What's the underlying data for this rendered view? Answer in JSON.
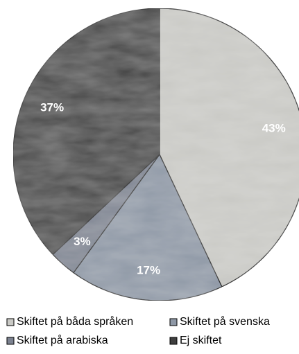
{
  "chart_data": {
    "type": "pie",
    "categories": [
      "Skiftet på båda språken",
      "Skiftet på svenska",
      "Skiftet på arabiska",
      "Ej skiftet"
    ],
    "values": [
      43,
      17,
      3,
      37
    ],
    "value_labels": [
      "43%",
      "17%",
      "3%",
      "37%"
    ],
    "colors": [
      "#c9c9c5",
      "#8e98a6",
      "#7c8290",
      "#3f3f3f"
    ],
    "legend": "bottom"
  }
}
